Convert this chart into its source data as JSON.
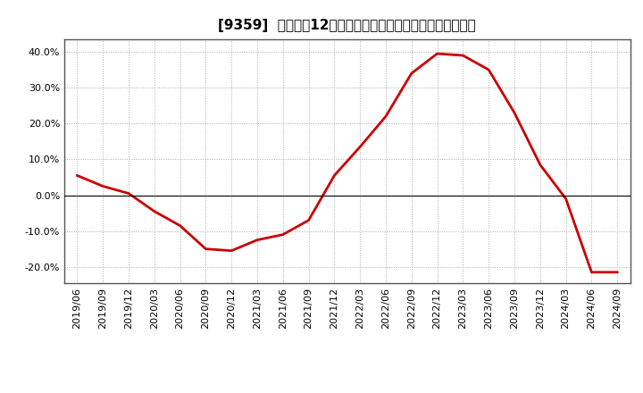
{
  "title": "[9359]  売上高の12か月移動合計の対前年同期増減率の推移",
  "line_color": "#cc0000",
  "background_color": "#ffffff",
  "plot_bg_color": "#ffffff",
  "grid_color": "#aaaaaa",
  "ylim": [
    -0.245,
    0.435
  ],
  "yticks": [
    -0.2,
    -0.1,
    0.0,
    0.1,
    0.2,
    0.3,
    0.4
  ],
  "dates": [
    "2019/06",
    "2019/09",
    "2019/12",
    "2020/03",
    "2020/06",
    "2020/09",
    "2020/12",
    "2021/03",
    "2021/06",
    "2021/09",
    "2021/12",
    "2022/03",
    "2022/06",
    "2022/09",
    "2022/12",
    "2023/03",
    "2023/06",
    "2023/09",
    "2023/12",
    "2024/03",
    "2024/06",
    "2024/09"
  ],
  "values": [
    0.055,
    0.025,
    0.005,
    -0.045,
    -0.085,
    -0.15,
    -0.155,
    -0.125,
    -0.11,
    -0.07,
    0.055,
    0.135,
    0.22,
    0.34,
    0.395,
    0.39,
    0.35,
    0.23,
    0.085,
    -0.01,
    -0.215,
    -0.215
  ],
  "xtick_labels": [
    "2019/06",
    "2019/09",
    "2019/12",
    "2020/03",
    "2020/06",
    "2020/09",
    "2020/12",
    "2021/03",
    "2021/06",
    "2021/09",
    "2021/12",
    "2022/03",
    "2022/06",
    "2022/09",
    "2022/12",
    "2023/03",
    "2023/06",
    "2023/09",
    "2023/12",
    "2024/03",
    "2024/06",
    "2024/09"
  ],
  "title_fontsize": 11,
  "tick_fontsize": 8,
  "line_width": 2.0
}
